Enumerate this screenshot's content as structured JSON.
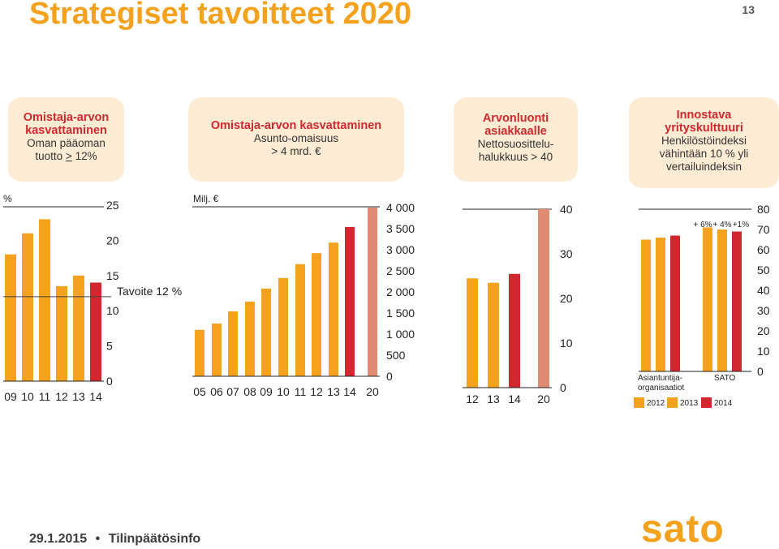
{
  "slide": {
    "title": "Strategiset tavoitteet 2020",
    "page_number": "13",
    "footer_date": "29.1.2015",
    "footer_separator": "•",
    "footer_label": "Tilinpäätösinfo",
    "logo_text": "sato"
  },
  "colors": {
    "orange": "#f4a11d",
    "red": "#d0282e",
    "salmon": "#e08c73",
    "box": "#fdebd3"
  },
  "goals": [
    {
      "title_lines": [
        "Omistaja-arvon",
        "kasvattaminen"
      ],
      "lines": [
        "Oman pääoman"
      ],
      "prefix": "tuotto ",
      "underlined": ">",
      "suffix": " 12%"
    },
    {
      "title_lines": [
        "Omistaja-arvon kasvattaminen"
      ],
      "lines": [
        "Asunto-omaisuus",
        "> 4 mrd. €"
      ]
    },
    {
      "title_lines": [
        "Arvonluonti",
        "asiakkaalle"
      ],
      "lines": [
        "Nettosuosittelu-",
        "halukkuus > 40"
      ]
    },
    {
      "title_lines": [
        "Innostava",
        "yrityskulttuuri"
      ],
      "lines": [
        "Henkilöstöindeksi",
        "vähintään 10 % yli",
        "vertailuindeksin"
      ]
    }
  ],
  "chart_data": [
    {
      "type": "bar",
      "unit_label": "%",
      "categories": [
        "09",
        "10",
        "11",
        "12",
        "13",
        "14"
      ],
      "values": [
        18,
        21,
        23,
        13.5,
        15,
        14
      ],
      "bar_colors": [
        "orange",
        "orange",
        "orange",
        "orange",
        "orange",
        "red"
      ],
      "yticks": [
        "0",
        "5",
        "10",
        "15",
        "20",
        "25"
      ],
      "ylim": [
        0,
        25
      ],
      "target_label": "Tavoite 12 %",
      "target_value": 12
    },
    {
      "type": "bar",
      "unit_label": "Milj. €",
      "categories": [
        "05",
        "06",
        "07",
        "08",
        "09",
        "10",
        "11",
        "12",
        "13",
        "14",
        "20"
      ],
      "values": [
        1100,
        1250,
        1540,
        1770,
        2080,
        2330,
        2660,
        2920,
        3170,
        3540,
        4000
      ],
      "bar_colors": [
        "orange",
        "orange",
        "orange",
        "orange",
        "orange",
        "orange",
        "orange",
        "orange",
        "orange",
        "red",
        "salmon"
      ],
      "yticks": [
        "0",
        "500",
        "1 000",
        "1 500",
        "2 000",
        "2 500",
        "3 000",
        "3 500",
        "4 000"
      ],
      "ylim": [
        0,
        4000
      ]
    },
    {
      "type": "bar",
      "categories": [
        "12",
        "13",
        "14",
        "20"
      ],
      "values": [
        24.5,
        23.5,
        25.5,
        40
      ],
      "bar_colors": [
        "orange",
        "orange",
        "red",
        "salmon"
      ],
      "yticks": [
        "0",
        "10",
        "20",
        "30",
        "40"
      ],
      "ylim": [
        0,
        40
      ]
    },
    {
      "type": "bar",
      "groups": [
        "Asiantuntija-\norganisaatiot",
        "SATO"
      ],
      "series": [
        {
          "name": "2012",
          "color": "orange",
          "values": [
            65,
            71
          ]
        },
        {
          "name": "2013",
          "color": "orange",
          "values": [
            66,
            70
          ]
        },
        {
          "name": "2014",
          "color": "red",
          "values": [
            67,
            69
          ]
        }
      ],
      "annotations": [
        "+ 6%",
        "+ 4%",
        "+1%"
      ],
      "yticks": [
        "0",
        "10",
        "20",
        "30",
        "40",
        "50",
        "60",
        "70",
        "80"
      ],
      "ylim": [
        0,
        80
      ]
    }
  ]
}
